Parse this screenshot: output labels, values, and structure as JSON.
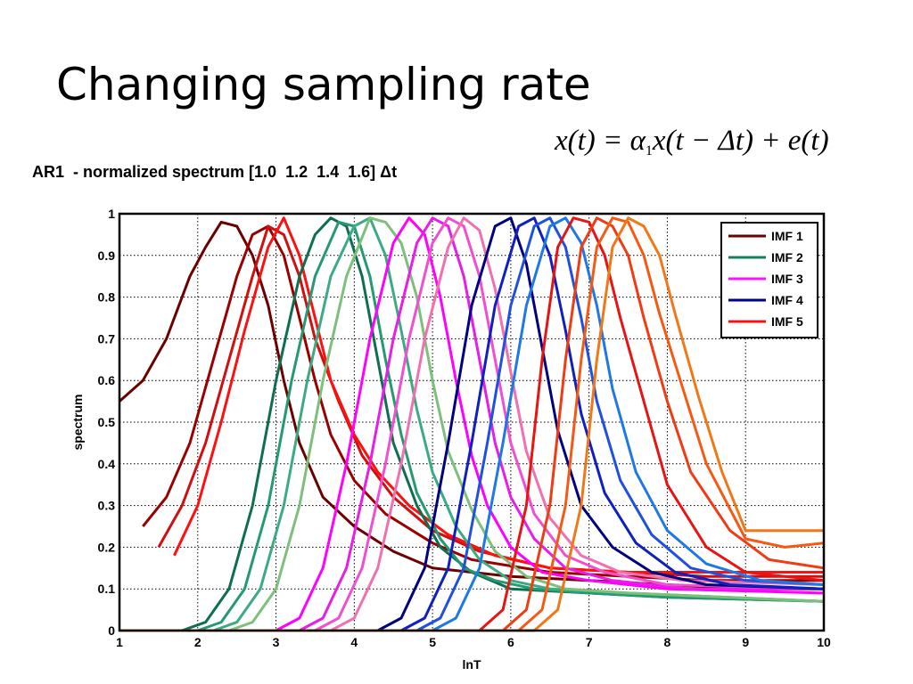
{
  "title": "Changing sampling rate",
  "subtitle": "AR1  - normalized spectrum [1.0  1.2  1.4  1.6] Δt",
  "formula": {
    "lhs": "x(t) = α",
    "sub": "1",
    "rhs": "x(t − Δt) + e(t)"
  },
  "chart_data": {
    "type": "line",
    "xlabel": "lnT",
    "ylabel": "spectrum",
    "xlim": [
      1,
      10
    ],
    "ylim": [
      0,
      1
    ],
    "xticks": [
      "1",
      "2",
      "3",
      "4",
      "5",
      "6",
      "7",
      "8",
      "9",
      "10"
    ],
    "yticks": [
      "0",
      "0.1",
      "0.2",
      "0.3",
      "0.4",
      "0.5",
      "0.6",
      "0.7",
      "0.8",
      "0.9",
      "1"
    ],
    "grid": true,
    "legend_position": "top-right",
    "legend": [
      {
        "name": "IMF 1",
        "color": "#6b0000"
      },
      {
        "name": "IMF 2",
        "color": "#148060"
      },
      {
        "name": "IMF 3",
        "color": "#ff10ff"
      },
      {
        "name": "IMF 4",
        "color": "#000090"
      },
      {
        "name": "IMF 5",
        "color": "#ff1010"
      }
    ],
    "series": [
      {
        "color": "#6b0000",
        "x": [
          1.0,
          1.3,
          1.6,
          1.9,
          2.1,
          2.3,
          2.5,
          2.7,
          2.9,
          3.1,
          3.3,
          3.6,
          4.0,
          4.5,
          5.0,
          6.0,
          7.0,
          8.0,
          9.0,
          10.0
        ],
        "y": [
          0.55,
          0.6,
          0.7,
          0.85,
          0.92,
          0.98,
          0.97,
          0.9,
          0.78,
          0.6,
          0.45,
          0.32,
          0.25,
          0.19,
          0.15,
          0.13,
          0.12,
          0.11,
          0.1,
          0.1
        ]
      },
      {
        "color": "#990000",
        "x": [
          1.3,
          1.6,
          1.9,
          2.2,
          2.5,
          2.7,
          2.9,
          3.1,
          3.3,
          3.5,
          3.7,
          4.0,
          4.4,
          5.0,
          5.5,
          6.5,
          7.5,
          8.5,
          10.0
        ],
        "y": [
          0.25,
          0.32,
          0.45,
          0.65,
          0.85,
          0.95,
          0.97,
          0.9,
          0.75,
          0.6,
          0.47,
          0.36,
          0.28,
          0.21,
          0.17,
          0.14,
          0.13,
          0.12,
          0.12
        ]
      },
      {
        "color": "#d01010",
        "x": [
          1.5,
          1.8,
          2.1,
          2.4,
          2.7,
          2.9,
          3.1,
          3.3,
          3.5,
          3.8,
          4.1,
          4.5,
          5.0,
          5.6,
          6.5,
          7.5,
          8.5,
          10.0
        ],
        "y": [
          0.2,
          0.3,
          0.45,
          0.65,
          0.85,
          0.97,
          0.95,
          0.85,
          0.7,
          0.55,
          0.42,
          0.32,
          0.24,
          0.19,
          0.15,
          0.14,
          0.13,
          0.13
        ]
      },
      {
        "color": "#ff1010",
        "x": [
          1.7,
          2.0,
          2.3,
          2.6,
          2.9,
          3.1,
          3.3,
          3.5,
          3.7,
          4.0,
          4.3,
          4.7,
          5.2,
          5.8,
          6.5,
          7.5,
          8.5,
          10.0
        ],
        "y": [
          0.18,
          0.3,
          0.5,
          0.72,
          0.92,
          0.99,
          0.9,
          0.75,
          0.6,
          0.47,
          0.38,
          0.3,
          0.23,
          0.18,
          0.15,
          0.14,
          0.14,
          0.14
        ]
      },
      {
        "color": "#0e6e50",
        "x": [
          1.0,
          1.8,
          2.1,
          2.4,
          2.7,
          3.0,
          3.3,
          3.5,
          3.7,
          3.9,
          4.1,
          4.3,
          4.5,
          4.8,
          5.1,
          5.5,
          6.0,
          7.0,
          8.0,
          10.0
        ],
        "y": [
          0.0,
          0.0,
          0.02,
          0.1,
          0.3,
          0.6,
          0.85,
          0.95,
          0.99,
          0.97,
          0.85,
          0.65,
          0.45,
          0.3,
          0.2,
          0.14,
          0.1,
          0.09,
          0.08,
          0.07
        ]
      },
      {
        "color": "#259a70",
        "x": [
          1.0,
          2.0,
          2.3,
          2.6,
          2.9,
          3.2,
          3.5,
          3.8,
          4.0,
          4.2,
          4.4,
          4.6,
          4.8,
          5.1,
          5.4,
          5.8,
          6.3,
          7.0,
          8.0,
          10.0
        ],
        "y": [
          0.0,
          0.0,
          0.02,
          0.1,
          0.3,
          0.6,
          0.85,
          0.98,
          0.97,
          0.85,
          0.65,
          0.47,
          0.33,
          0.22,
          0.15,
          0.12,
          0.1,
          0.09,
          0.08,
          0.07
        ]
      },
      {
        "color": "#3dab82",
        "x": [
          1.0,
          2.2,
          2.5,
          2.8,
          3.1,
          3.4,
          3.7,
          4.0,
          4.2,
          4.4,
          4.6,
          4.8,
          5.0,
          5.3,
          5.6,
          6.0,
          6.5,
          7.5,
          10.0
        ],
        "y": [
          0.0,
          0.0,
          0.02,
          0.1,
          0.3,
          0.6,
          0.85,
          0.97,
          0.99,
          0.9,
          0.72,
          0.53,
          0.38,
          0.25,
          0.17,
          0.12,
          0.1,
          0.09,
          0.07
        ]
      },
      {
        "color": "#7cc07c",
        "x": [
          1.0,
          2.4,
          2.7,
          3.0,
          3.3,
          3.6,
          3.9,
          4.2,
          4.4,
          4.6,
          4.8,
          5.0,
          5.2,
          5.5,
          5.8,
          6.2,
          6.7,
          7.5,
          10.0
        ],
        "y": [
          0.0,
          0.0,
          0.02,
          0.1,
          0.3,
          0.6,
          0.85,
          0.99,
          0.98,
          0.93,
          0.8,
          0.6,
          0.43,
          0.29,
          0.19,
          0.13,
          0.1,
          0.09,
          0.07
        ]
      },
      {
        "color": "#ff00ff",
        "x": [
          1.0,
          3.0,
          3.3,
          3.6,
          3.9,
          4.2,
          4.5,
          4.7,
          4.9,
          5.1,
          5.3,
          5.5,
          5.7,
          6.0,
          6.4,
          7.0,
          8.0,
          10.0
        ],
        "y": [
          0.0,
          0.0,
          0.03,
          0.15,
          0.4,
          0.7,
          0.93,
          0.99,
          0.95,
          0.8,
          0.6,
          0.42,
          0.3,
          0.2,
          0.14,
          0.12,
          0.1,
          0.09
        ]
      },
      {
        "color": "#e61ee6",
        "x": [
          1.0,
          3.3,
          3.6,
          3.9,
          4.2,
          4.5,
          4.8,
          5.0,
          5.2,
          5.4,
          5.6,
          5.8,
          6.0,
          6.3,
          6.7,
          7.3,
          8.3,
          10.0
        ],
        "y": [
          0.0,
          0.0,
          0.03,
          0.15,
          0.4,
          0.7,
          0.93,
          0.99,
          0.97,
          0.85,
          0.65,
          0.45,
          0.32,
          0.22,
          0.15,
          0.12,
          0.1,
          0.1
        ]
      },
      {
        "color": "#f050d0",
        "x": [
          1.0,
          3.5,
          3.8,
          4.1,
          4.4,
          4.7,
          5.0,
          5.2,
          5.4,
          5.6,
          5.8,
          6.0,
          6.3,
          6.7,
          7.2,
          8.0,
          10.0
        ],
        "y": [
          0.0,
          0.0,
          0.03,
          0.15,
          0.4,
          0.7,
          0.93,
          0.99,
          0.97,
          0.85,
          0.65,
          0.45,
          0.28,
          0.18,
          0.14,
          0.11,
          0.1
        ]
      },
      {
        "color": "#f070b0",
        "x": [
          1.0,
          3.7,
          4.0,
          4.3,
          4.6,
          4.9,
          5.2,
          5.4,
          5.6,
          5.8,
          6.0,
          6.2,
          6.5,
          6.9,
          7.4,
          8.2,
          10.0
        ],
        "y": [
          0.0,
          0.0,
          0.03,
          0.15,
          0.4,
          0.7,
          0.92,
          0.99,
          0.96,
          0.82,
          0.62,
          0.43,
          0.27,
          0.18,
          0.14,
          0.12,
          0.11
        ]
      },
      {
        "color": "#000080",
        "x": [
          1.0,
          4.3,
          4.6,
          4.9,
          5.2,
          5.5,
          5.8,
          6.0,
          6.2,
          6.4,
          6.6,
          6.9,
          7.3,
          7.8,
          8.5,
          10.0
        ],
        "y": [
          0.0,
          0.0,
          0.03,
          0.15,
          0.45,
          0.78,
          0.97,
          0.99,
          0.88,
          0.68,
          0.48,
          0.3,
          0.2,
          0.14,
          0.11,
          0.1
        ]
      },
      {
        "color": "#1020c0",
        "x": [
          1.0,
          4.6,
          4.9,
          5.2,
          5.5,
          5.8,
          6.1,
          6.3,
          6.5,
          6.7,
          6.9,
          7.2,
          7.6,
          8.1,
          8.8,
          10.0
        ],
        "y": [
          0.0,
          0.0,
          0.03,
          0.15,
          0.45,
          0.78,
          0.97,
          0.99,
          0.9,
          0.72,
          0.52,
          0.33,
          0.21,
          0.14,
          0.11,
          0.1
        ]
      },
      {
        "color": "#2050e0",
        "x": [
          1.0,
          4.8,
          5.1,
          5.4,
          5.7,
          6.0,
          6.3,
          6.5,
          6.7,
          6.9,
          7.1,
          7.4,
          7.8,
          8.3,
          9.0,
          10.0
        ],
        "y": [
          0.0,
          0.0,
          0.03,
          0.15,
          0.45,
          0.78,
          0.97,
          0.99,
          0.92,
          0.75,
          0.55,
          0.36,
          0.23,
          0.15,
          0.12,
          0.11
        ]
      },
      {
        "color": "#1e78e6",
        "x": [
          1.0,
          5.0,
          5.3,
          5.6,
          5.9,
          6.2,
          6.5,
          6.7,
          6.9,
          7.1,
          7.3,
          7.6,
          8.0,
          8.5,
          9.2,
          10.0
        ],
        "y": [
          0.0,
          0.0,
          0.03,
          0.15,
          0.45,
          0.78,
          0.97,
          0.99,
          0.93,
          0.78,
          0.58,
          0.38,
          0.24,
          0.16,
          0.12,
          0.11
        ]
      },
      {
        "color": "#e61414",
        "x": [
          1.0,
          5.6,
          5.9,
          6.2,
          6.4,
          6.6,
          6.8,
          7.0,
          7.2,
          7.4,
          7.7,
          8.0,
          8.5,
          9.0,
          10.0
        ],
        "y": [
          0.0,
          0.0,
          0.05,
          0.3,
          0.65,
          0.92,
          0.99,
          0.98,
          0.9,
          0.75,
          0.55,
          0.35,
          0.2,
          0.14,
          0.12
        ]
      },
      {
        "color": "#f03c14",
        "x": [
          1.0,
          5.9,
          6.2,
          6.5,
          6.7,
          6.9,
          7.1,
          7.3,
          7.5,
          7.7,
          8.0,
          8.3,
          8.8,
          9.3,
          10.0
        ],
        "y": [
          0.0,
          0.0,
          0.05,
          0.3,
          0.65,
          0.92,
          0.99,
          0.97,
          0.9,
          0.75,
          0.55,
          0.38,
          0.24,
          0.17,
          0.15
        ]
      },
      {
        "color": "#f55a14",
        "x": [
          1.0,
          6.1,
          6.4,
          6.7,
          6.9,
          7.1,
          7.3,
          7.5,
          7.7,
          7.9,
          8.2,
          8.5,
          9.0,
          9.5,
          10.0
        ],
        "y": [
          0.0,
          0.0,
          0.05,
          0.3,
          0.65,
          0.92,
          0.99,
          0.98,
          0.9,
          0.76,
          0.58,
          0.4,
          0.22,
          0.2,
          0.21
        ]
      },
      {
        "color": "#f07818",
        "x": [
          1.0,
          6.3,
          6.6,
          6.9,
          7.1,
          7.3,
          7.5,
          7.7,
          7.9,
          8.1,
          8.4,
          8.7,
          9.0,
          9.5,
          10.0
        ],
        "y": [
          0.0,
          0.0,
          0.05,
          0.3,
          0.65,
          0.92,
          0.99,
          0.97,
          0.9,
          0.76,
          0.56,
          0.38,
          0.24,
          0.24,
          0.24
        ]
      }
    ]
  }
}
